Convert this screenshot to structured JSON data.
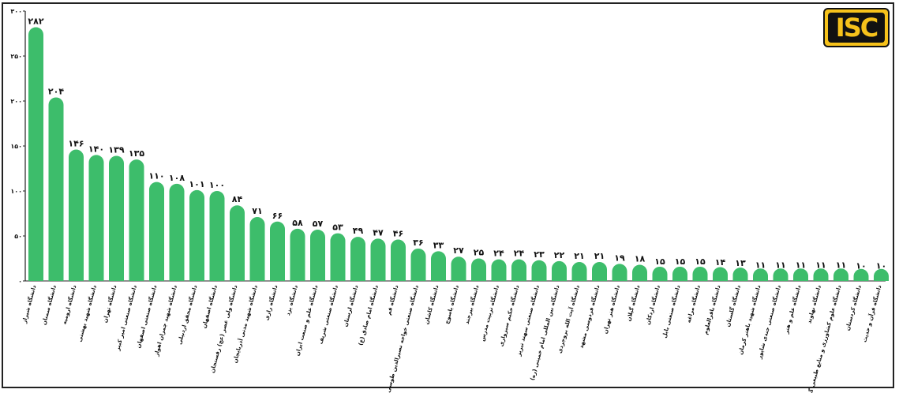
{
  "brand": {
    "logo_text": "ISC"
  },
  "colors": {
    "bar": "#3dbd6b",
    "axis": "#222222",
    "text": "#111111"
  },
  "chart_data": {
    "type": "bar",
    "title": "",
    "xlabel": "",
    "ylabel": "",
    "ylim": [
      0,
      300
    ],
    "yticks": [
      0,
      50,
      100,
      150,
      200,
      250,
      300
    ],
    "ytick_labels": [
      "۰",
      "۵۰",
      "۱۰۰",
      "۱۵۰",
      "۲۰۰",
      "۲۵۰",
      "۳۰۰"
    ],
    "grid": false,
    "categories": [
      "دانشگاه شیراز",
      "دانشگاه سمنان",
      "دانشگاه ارومیه",
      "دانشگاه شهید بهشتی",
      "دانشگاه تهران",
      "دانشگاه صنعتی امیر کبیر",
      "دانشگاه صنعتی اصفهان",
      "دانشگاه شهید چمران اهواز",
      "دانشگاه محقق اردبیلی",
      "دانشگاه اصفهان",
      "دانشگاه ولی عصر (عج) رفسنجان",
      "دانشگاه شهید مدنی آذربایجان",
      "دانشگاه رازی",
      "دانشگاه یزد",
      "دانشگاه علم و صنعت ایران",
      "دانشگاه صنعتی شریف",
      "دانشگاه لرستان",
      "دانشگاه امام صادق (ع)",
      "دانشگاه قم",
      "دانشگاه صنعتی خواجه نصیرالدین طوسی",
      "دانشگاه کاشان",
      "دانشگاه یاسوج",
      "دانشگاه بیرجند",
      "دانشگاه تربیت مدرس",
      "دانشگاه حکیم سبزواری",
      "دانشگاه صنعتی سهند تبریز",
      "دانشگاه بین المللی امام خمینی (ره)",
      "دانشگاه آیت الله بروجردی",
      "دانشگاه فردوسی مشهد",
      "دانشگاه هنر تهران",
      "دانشگاه گیلان",
      "دانشگاه اردکان",
      "دانشگاه صنعتی بابل",
      "دانشگاه مراغه",
      "دانشگاه باقرالعلوم",
      "دانشگاه گلستان",
      "دانشگاه شهید باهنر کرمان",
      "دانشگاه صنعتی جندی شاپور",
      "دانشگاه علم و هنر",
      "دانشگاه نهاوند",
      "دانشگاه علوم کشاورزی و منابع طبیعی گرگان",
      "دانشگاه کردستان",
      "دانشگاه قرآن و حدیث"
    ],
    "values": [
      282,
      204,
      146,
      140,
      139,
      135,
      110,
      108,
      101,
      100,
      84,
      71,
      66,
      58,
      57,
      53,
      49,
      47,
      46,
      36,
      33,
      27,
      25,
      24,
      24,
      23,
      22,
      21,
      21,
      19,
      18,
      15,
      15,
      15,
      14,
      13,
      11,
      11,
      11,
      11,
      11,
      10,
      10
    ],
    "value_labels": [
      "۲۸۲",
      "۲۰۴",
      "۱۴۶",
      "۱۴۰",
      "۱۳۹",
      "۱۳۵",
      "۱۱۰",
      "۱۰۸",
      "۱۰۱",
      "۱۰۰",
      "۸۴",
      "۷۱",
      "۶۶",
      "۵۸",
      "۵۷",
      "۵۳",
      "۴۹",
      "۴۷",
      "۴۶",
      "۳۶",
      "۳۳",
      "۲۷",
      "۲۵",
      "۲۴",
      "۲۴",
      "۲۳",
      "۲۲",
      "۲۱",
      "۲۱",
      "۱۹",
      "۱۸",
      "۱۵",
      "۱۵",
      "۱۵",
      "۱۴",
      "۱۳",
      "۱۱",
      "۱۱",
      "۱۱",
      "۱۱",
      "۱۱",
      "۱۰",
      "۱۰"
    ]
  }
}
